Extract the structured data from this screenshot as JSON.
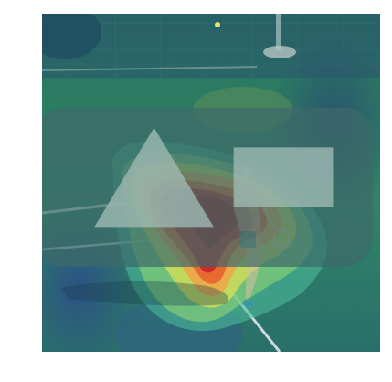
{
  "image": {
    "type": "heatmap-overlay-on-photo",
    "scene": "tennis-player-serving-on-court",
    "colors": {
      "court_green": "#2b7d5e",
      "court_blue": "#2b5b8d",
      "fence_dark": "#1d4b53",
      "heat_low": "#3bb5a7",
      "heat_mid": "#e7e14c",
      "heat_high": "#e24a24",
      "heat_peak": "#b31e22"
    }
  }
}
